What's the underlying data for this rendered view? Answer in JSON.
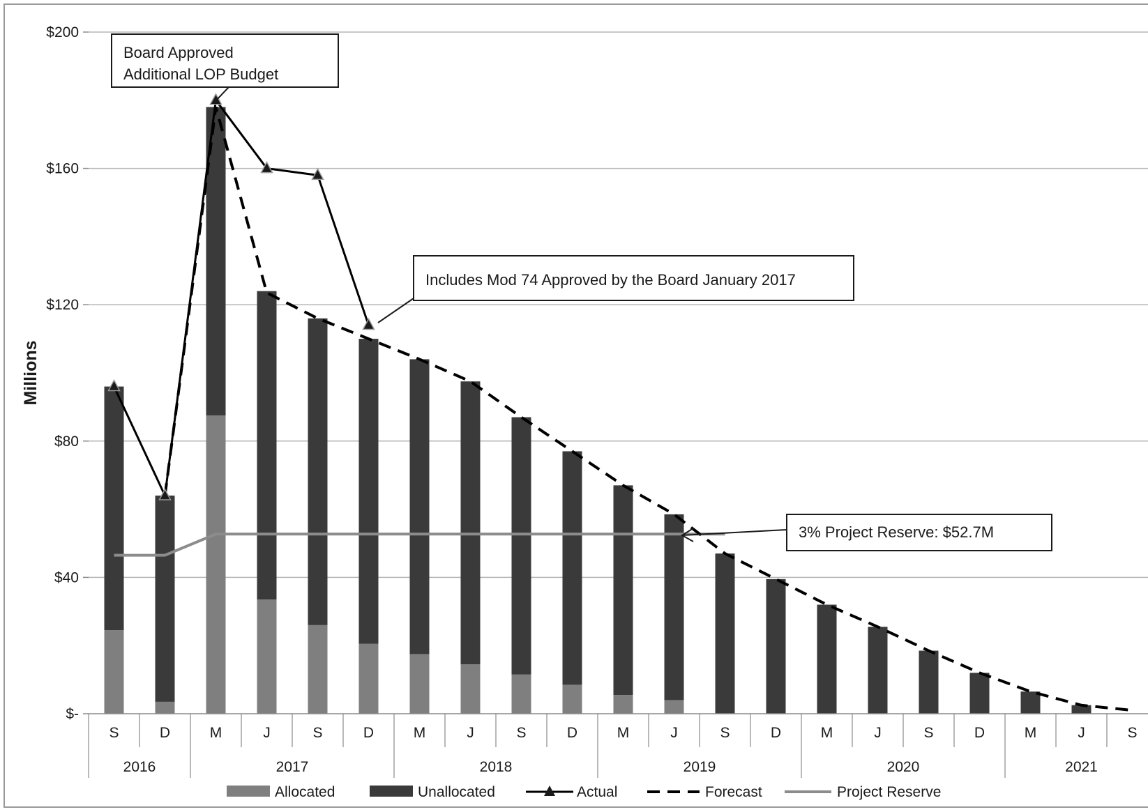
{
  "chart_data": {
    "type": "bar",
    "stacked": true,
    "ylabel": "Millions",
    "ylim": [
      0,
      200
    ],
    "y_ticks": [
      0,
      40,
      80,
      120,
      160,
      200
    ],
    "y_tick_labels": [
      "$-",
      "$40",
      "$80",
      "$120",
      "$160",
      "$200"
    ],
    "grid": true,
    "categories": [
      "S",
      "D",
      "M",
      "J",
      "S",
      "D",
      "M",
      "J",
      "S",
      "D",
      "M",
      "J",
      "S",
      "D",
      "M",
      "J",
      "S",
      "D",
      "M",
      "J",
      "S"
    ],
    "year_groups": [
      {
        "label": "2016",
        "count": 2
      },
      {
        "label": "2017",
        "count": 4
      },
      {
        "label": "2018",
        "count": 4
      },
      {
        "label": "2019",
        "count": 4
      },
      {
        "label": "2020",
        "count": 4
      },
      {
        "label": "2021",
        "count": 3
      }
    ],
    "series": [
      {
        "name": "Allocated",
        "kind": "bar",
        "color": "#7f7f7f",
        "values": [
          24.5,
          3.5,
          87.5,
          33.5,
          26,
          20.5,
          17.5,
          14.5,
          11.5,
          8.5,
          5.5,
          4,
          0,
          0,
          0,
          0,
          0,
          0,
          0,
          0,
          0
        ]
      },
      {
        "name": "Unallocated",
        "kind": "bar",
        "color": "#3a3a3a",
        "values": [
          71.5,
          60.5,
          90.5,
          90.5,
          90,
          89.5,
          86.5,
          83,
          75.5,
          68.5,
          61.5,
          54.5,
          47,
          39.5,
          32,
          25.5,
          18.5,
          12,
          6.5,
          2.5,
          0
        ]
      },
      {
        "name": "Actual",
        "kind": "line",
        "color": "#000000",
        "marker": "triangle",
        "values": [
          96,
          64,
          180,
          160,
          158,
          114,
          null,
          null,
          null,
          null,
          null,
          null,
          null,
          null,
          null,
          null,
          null,
          null,
          null,
          null,
          null
        ]
      },
      {
        "name": "Forecast",
        "kind": "line",
        "color": "#000000",
        "dash": true,
        "values": [
          null,
          64,
          178,
          123.5,
          116,
          110,
          104,
          97.5,
          87,
          77,
          67,
          58.5,
          47,
          39.5,
          32,
          25.5,
          18.5,
          12,
          6.5,
          2.5,
          1
        ]
      },
      {
        "name": "Project Reserve",
        "kind": "line",
        "color": "#8c8c8c",
        "values": [
          46.5,
          46.5,
          52.7,
          52.7,
          52.7,
          52.7,
          52.7,
          52.7,
          52.7,
          52.7,
          52.7,
          52.7,
          52.7,
          null,
          null,
          null,
          null,
          null,
          null,
          null,
          null
        ]
      }
    ],
    "legend_position": "bottom",
    "annotations": {
      "board": [
        "Board Approved",
        "Additional LOP Budget"
      ],
      "mod74": "Includes Mod 74 Approved by the Board January 2017",
      "reserve": "3% Project Reserve: $52.7M"
    }
  }
}
